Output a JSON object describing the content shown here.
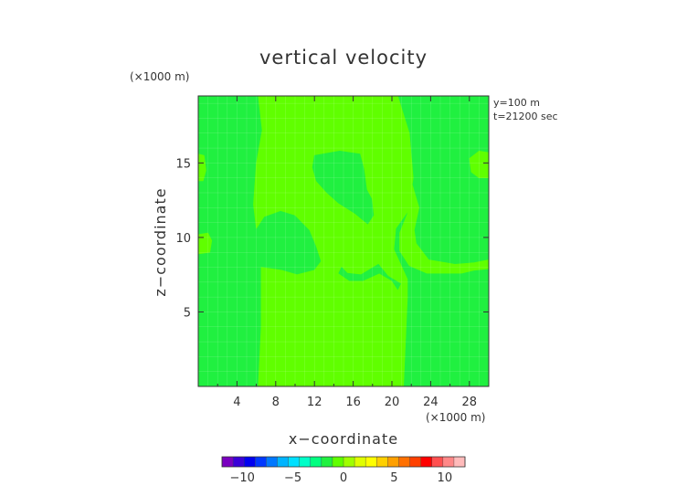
{
  "chart_data": {
    "type": "heatmap",
    "title": "vertical velocity",
    "xlabel": "x−coordinate",
    "ylabel": "z−coordinate",
    "x_unit": "(×1000 m)",
    "y_unit": "(×1000 m)",
    "annotations": [
      "y=100 m",
      "t=21200 sec"
    ],
    "xlim": [
      0,
      30
    ],
    "ylim": [
      0,
      19.5
    ],
    "x_ticks": [
      4,
      8,
      12,
      16,
      20,
      24,
      28
    ],
    "y_ticks": [
      5,
      10,
      15
    ],
    "grid": true,
    "colorbar": {
      "range": [
        -12,
        12
      ],
      "ticks": [
        -10,
        -5,
        0,
        5,
        10
      ],
      "tick_labels": [
        "−10",
        "−5",
        "0",
        "5",
        "10"
      ],
      "colors": [
        "#7a00c0",
        "#3a00d8",
        "#0000f0",
        "#0038ff",
        "#0078ff",
        "#00b4ff",
        "#00e0ff",
        "#00ffc8",
        "#00ff80",
        "#20f040",
        "#60ff00",
        "#a0ff00",
        "#e0ff00",
        "#ffff00",
        "#ffd000",
        "#ffa000",
        "#ff7000",
        "#ff4000",
        "#ff0000",
        "#ff5050",
        "#ff8888",
        "#ffbbbb"
      ]
    },
    "regions": [
      {
        "level": 0.5,
        "color": "#60ff00",
        "points": [
          [
            6.2,
            19.5
          ],
          [
            20.6,
            19.5
          ],
          [
            21.8,
            17.0
          ],
          [
            22.2,
            14.0
          ],
          [
            21.7,
            11.8
          ],
          [
            20.4,
            10.6
          ],
          [
            20.2,
            9.2
          ],
          [
            21.6,
            7.2
          ],
          [
            21.6,
            6.0
          ],
          [
            21.2,
            0
          ],
          [
            6.2,
            0
          ],
          [
            6.5,
            4.0
          ],
          [
            6.5,
            8.0
          ],
          [
            8.6,
            7.8
          ],
          [
            10.2,
            7.5
          ],
          [
            12.0,
            7.8
          ],
          [
            12.7,
            8.4
          ],
          [
            12.2,
            9.4
          ],
          [
            11.5,
            10.5
          ],
          [
            10.0,
            11.5
          ],
          [
            8.5,
            11.8
          ],
          [
            6.8,
            11.4
          ],
          [
            6.0,
            10.6
          ],
          [
            5.7,
            12.2
          ],
          [
            6.0,
            15.0
          ],
          [
            6.6,
            17.2
          ]
        ]
      },
      {
        "level": 0.5,
        "color": "#60ff00",
        "points": [
          [
            0,
            10.2
          ],
          [
            1.0,
            10.3
          ],
          [
            1.4,
            9.8
          ],
          [
            1.2,
            9.0
          ],
          [
            0,
            8.9
          ]
        ]
      },
      {
        "level": 0.5,
        "color": "#60ff00",
        "points": [
          [
            0,
            15.6
          ],
          [
            0.6,
            15.5
          ],
          [
            0.8,
            14.5
          ],
          [
            0.5,
            13.8
          ],
          [
            0,
            13.8
          ]
        ]
      },
      {
        "level": 0.5,
        "color": "#60ff00",
        "points": [
          [
            21.9,
            14.0
          ],
          [
            22.8,
            12.0
          ],
          [
            22.3,
            10.5
          ],
          [
            22.5,
            9.6
          ],
          [
            23.8,
            8.5
          ],
          [
            26.5,
            8.2
          ],
          [
            28.5,
            8.3
          ],
          [
            30,
            8.5
          ],
          [
            30,
            7.9
          ],
          [
            28.5,
            7.8
          ],
          [
            27.2,
            7.6
          ],
          [
            23.6,
            7.6
          ],
          [
            21.8,
            8.1
          ],
          [
            20.8,
            9.1
          ],
          [
            20.8,
            10.3
          ],
          [
            21.6,
            11.6
          ]
        ]
      },
      {
        "level": 0.5,
        "color": "#60ff00",
        "points": [
          [
            30,
            15.7
          ],
          [
            29.0,
            15.8
          ],
          [
            28.0,
            15.3
          ],
          [
            28.2,
            14.4
          ],
          [
            29.0,
            14.0
          ],
          [
            30,
            14.0
          ]
        ]
      },
      {
        "level": -0.5,
        "color": "#20f040",
        "points": [
          [
            12.0,
            15.5
          ],
          [
            14.6,
            15.8
          ],
          [
            16.7,
            15.6
          ],
          [
            17.1,
            14.6
          ],
          [
            17.4,
            13.2
          ],
          [
            17.9,
            12.6
          ],
          [
            18.1,
            11.5
          ],
          [
            17.5,
            10.9
          ],
          [
            16.2,
            11.6
          ],
          [
            14.5,
            12.3
          ],
          [
            13.3,
            13.0
          ],
          [
            12.2,
            13.8
          ],
          [
            11.8,
            14.7
          ]
        ]
      },
      {
        "level": -0.5,
        "color": "#20f040",
        "points": [
          [
            14.8,
            8.0
          ],
          [
            15.4,
            7.6
          ],
          [
            16.8,
            7.5
          ],
          [
            18.6,
            8.2
          ],
          [
            19.6,
            7.4
          ],
          [
            20.9,
            6.9
          ],
          [
            20.6,
            6.5
          ],
          [
            20.0,
            7.1
          ],
          [
            18.7,
            7.6
          ],
          [
            17.0,
            7.1
          ],
          [
            15.6,
            7.1
          ],
          [
            14.5,
            7.6
          ]
        ]
      }
    ]
  }
}
